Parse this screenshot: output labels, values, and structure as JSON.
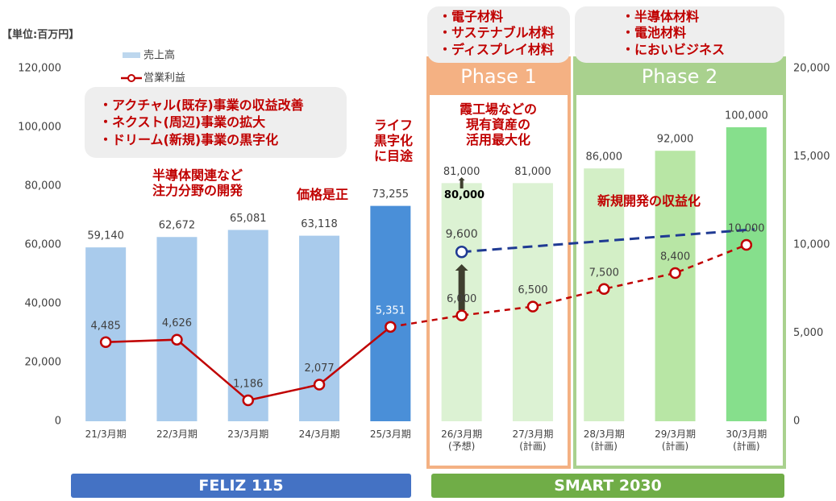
{
  "chart_data": {
    "type": "bar",
    "unit_label": "【単位:百万円】",
    "categories": [
      "21/3月期",
      "22/3月期",
      "23/3月期",
      "24/3月期",
      "25/3月期",
      "26/3月期\n(予想)",
      "27/3月期\n(計画)",
      "28/3月期\n(計画)",
      "29/3月期\n(計画)",
      "30/3月期\n(計画)"
    ],
    "ylim": [
      0,
      120000
    ],
    "yticks": [
      0,
      {
        "value": 20000,
        "label": "20,000"
      },
      {
        "value": 40000,
        "label": "40,000"
      },
      {
        "value": 60000,
        "label": "60,000"
      },
      {
        "value": 80000,
        "label": "80,000"
      },
      {
        "value": 100000,
        "label": "100,000"
      },
      {
        "value": 120000,
        "label": "120,000"
      }
    ],
    "y2lim": [
      0,
      20000
    ],
    "y2ticks": [
      0,
      {
        "value": 5000,
        "label": "5,000"
      },
      {
        "value": 10000,
        "label": "10,000"
      },
      {
        "value": 15000,
        "label": "15,000"
      },
      {
        "value": 20000,
        "label": "20,000"
      }
    ],
    "series": [
      {
        "name": "売上高",
        "type": "bar",
        "color": "#bdd7ee",
        "colors": [
          "#a9cbec",
          "#a9cbec",
          "#a9cbec",
          "#a9cbec",
          "#4a8fd8",
          "#dcf2d3",
          "#dcf2d3",
          "#d3efc6",
          "#b8e6a5",
          "#86df8c"
        ],
        "values": [
          59140,
          62672,
          65081,
          63118,
          73255,
          81000,
          81000,
          86000,
          92000,
          100000
        ],
        "value_labels": [
          "59,140",
          "62,672",
          "65,081",
          "63,118",
          "73,255",
          "81,000",
          "81,000",
          "86,000",
          "92,000",
          "100,000"
        ]
      },
      {
        "name": "営業利益",
        "type": "line",
        "axis": "y2",
        "color": "#c00000",
        "values": [
          4485,
          4626,
          1186,
          2077,
          5351,
          6000,
          6500,
          7500,
          8400,
          10000
        ],
        "value_labels": [
          "4,485",
          "4,626",
          "1,186",
          "2,077",
          "5,351",
          "6,000",
          "6,500",
          "7,500",
          "8,400",
          "10,000"
        ],
        "segment_styles": [
          "solid",
          "solid",
          "solid",
          "solid",
          "dashed",
          "dashed",
          "dashed",
          "dashed",
          "dashed"
        ]
      }
    ],
    "target": {
      "value": 9600,
      "label": "9,600",
      "color": "#1f3a93"
    },
    "annotations": {
      "callout": [
        "・アクチャル(既存)事業の収益改善",
        "・ネクスト(周辺)事業の拡大",
        "・ドリーム(新規)事業の黒字化"
      ],
      "semiconductor": "半導体関連など\n注力分野の開発",
      "price": "価格是正",
      "life": "ライフ\n黒字化\nに目途",
      "kasumi": "霞工場などの\n現有資産の\n活用最大化",
      "new_dev": "新規開発の収益化",
      "previous": "80,000"
    },
    "phases": [
      {
        "title": "Phase 1",
        "items": "・電子材料\n・サステナブル材料\n・ディスプレイ材料"
      },
      {
        "title": "Phase 2",
        "items": "・半導体材料\n・電池材料\n・においビジネス"
      }
    ],
    "banners": [
      "FELIZ 115",
      "SMART 2030"
    ]
  }
}
